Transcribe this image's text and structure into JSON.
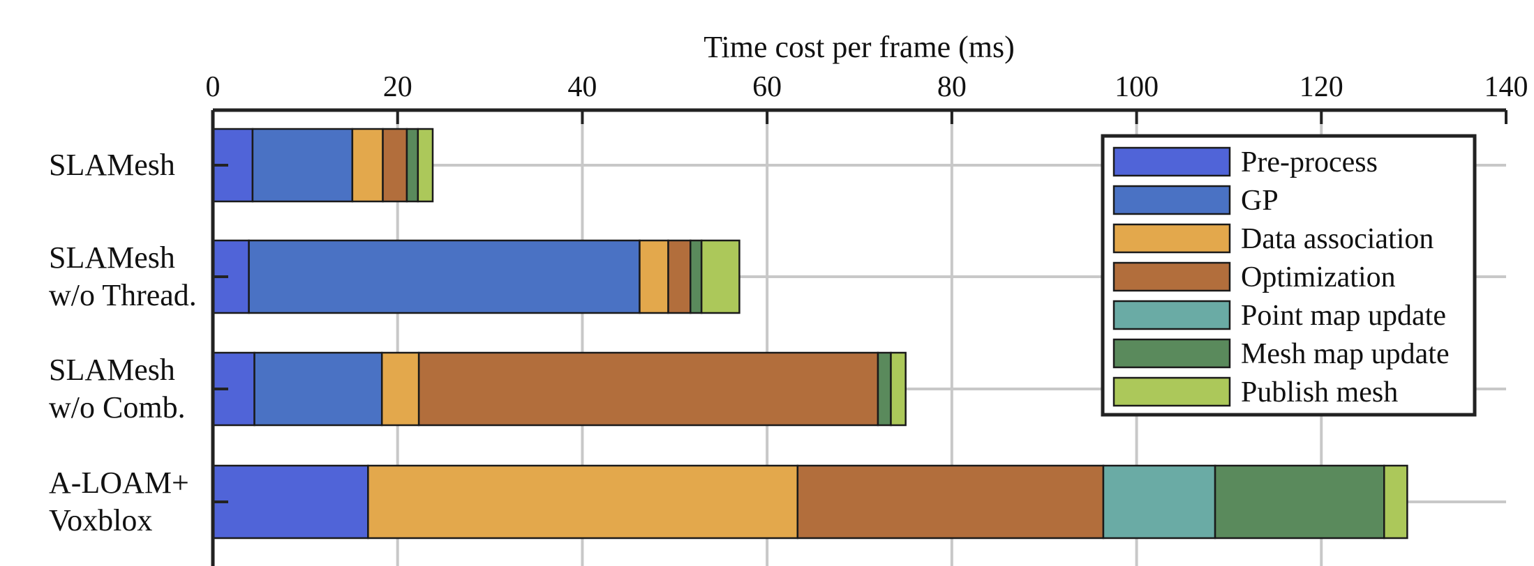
{
  "chart_data": {
    "type": "bar",
    "orientation": "horizontal",
    "stacked": true,
    "title": "Time cost per frame (ms)",
    "xlim": [
      0,
      140
    ],
    "xticks": [
      0,
      20,
      40,
      60,
      80,
      100,
      120,
      140
    ],
    "grid": true,
    "legend_position": "top-right",
    "categories": [
      [
        "SLAMesh"
      ],
      [
        "SLAMesh",
        "w/o Thread."
      ],
      [
        "SLAMesh",
        "w/o Comb."
      ],
      [
        "A-LOAM+",
        "Voxblox"
      ]
    ],
    "series": [
      {
        "name": "Pre-process",
        "color": "#5064d8",
        "values": [
          4.3,
          3.9,
          4.5,
          16.8
        ]
      },
      {
        "name": "GP",
        "color": "#4a72c4",
        "values": [
          10.8,
          42.3,
          13.8,
          0
        ]
      },
      {
        "name": "Data association",
        "color": "#e3a84c",
        "values": [
          3.3,
          3.1,
          4.0,
          46.5
        ]
      },
      {
        "name": "Optimization",
        "color": "#b26e3c",
        "values": [
          2.6,
          2.4,
          49.7,
          33.1
        ]
      },
      {
        "name": "Point map update",
        "color": "#6aaba5",
        "values": [
          0,
          0,
          0,
          12.1
        ]
      },
      {
        "name": "Mesh map update",
        "color": "#5a8a5c",
        "values": [
          1.2,
          1.2,
          1.4,
          18.3
        ]
      },
      {
        "name": "Publish mesh",
        "color": "#acc85a",
        "values": [
          1.6,
          4.1,
          1.6,
          2.5
        ]
      }
    ]
  }
}
